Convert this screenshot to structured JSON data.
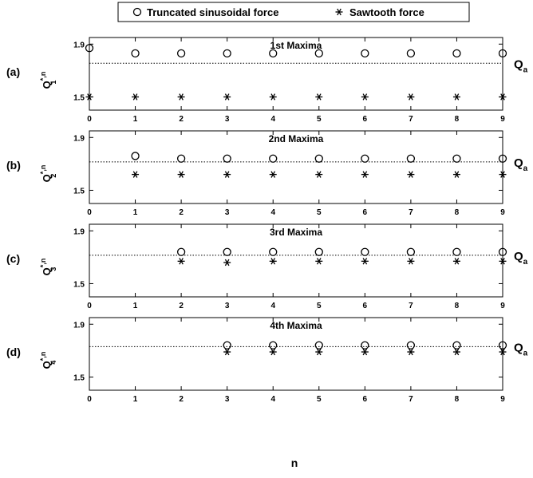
{
  "legend": {
    "entries": [
      {
        "label": "Truncated sinusoidal force",
        "marker": "circle"
      },
      {
        "label": "Sawtooth force",
        "marker": "asterisk"
      }
    ]
  },
  "xlabel": "n",
  "reference_label": {
    "main": "Q",
    "sub": "a"
  },
  "ylabel_parts": {
    "main": "Q",
    "sup": "*,n"
  },
  "chart_data": [
    {
      "type": "scatter",
      "panel": "(a)",
      "title": "1st Maxima",
      "ylabel_sub": "1",
      "xlim": [
        0,
        9
      ],
      "ylim": [
        1.4,
        1.95
      ],
      "yticks": [
        1.5,
        1.9
      ],
      "xticks": [
        0,
        1,
        2,
        3,
        4,
        5,
        6,
        7,
        8,
        9
      ],
      "reference_line": 1.755,
      "series": [
        {
          "name": "Truncated sinusoidal force",
          "marker": "circle",
          "x": [
            0,
            1,
            2,
            3,
            4,
            5,
            6,
            7,
            8,
            9
          ],
          "y": [
            1.87,
            1.83,
            1.83,
            1.83,
            1.83,
            1.83,
            1.83,
            1.83,
            1.83,
            1.83
          ]
        },
        {
          "name": "Sawtooth force",
          "marker": "asterisk",
          "x": [
            0,
            1,
            2,
            3,
            4,
            5,
            6,
            7,
            8,
            9
          ],
          "y": [
            1.5,
            1.5,
            1.5,
            1.5,
            1.5,
            1.5,
            1.5,
            1.5,
            1.5,
            1.5
          ]
        }
      ]
    },
    {
      "type": "scatter",
      "panel": "(b)",
      "title": "2nd Maxima",
      "ylabel_sub": "2",
      "xlim": [
        0,
        9
      ],
      "ylim": [
        1.4,
        1.95
      ],
      "yticks": [
        1.5,
        1.9
      ],
      "xticks": [
        0,
        1,
        2,
        3,
        4,
        5,
        6,
        7,
        8,
        9
      ],
      "reference_line": 1.715,
      "series": [
        {
          "name": "Truncated sinusoidal force",
          "marker": "circle",
          "x": [
            1,
            2,
            3,
            4,
            5,
            6,
            7,
            8,
            9
          ],
          "y": [
            1.76,
            1.74,
            1.74,
            1.74,
            1.74,
            1.74,
            1.74,
            1.74,
            1.74
          ]
        },
        {
          "name": "Sawtooth force",
          "marker": "asterisk",
          "x": [
            1,
            2,
            3,
            4,
            5,
            6,
            7,
            8,
            9
          ],
          "y": [
            1.62,
            1.62,
            1.62,
            1.62,
            1.62,
            1.62,
            1.62,
            1.62,
            1.62
          ]
        }
      ]
    },
    {
      "type": "scatter",
      "panel": "(c)",
      "title": "3rd Maxima",
      "ylabel_sub": "3",
      "xlim": [
        0,
        9
      ],
      "ylim": [
        1.4,
        1.95
      ],
      "yticks": [
        1.5,
        1.9
      ],
      "xticks": [
        0,
        1,
        2,
        3,
        4,
        5,
        6,
        7,
        8,
        9
      ],
      "reference_line": 1.715,
      "series": [
        {
          "name": "Truncated sinusoidal force",
          "marker": "circle",
          "x": [
            2,
            3,
            4,
            5,
            6,
            7,
            8,
            9
          ],
          "y": [
            1.74,
            1.74,
            1.74,
            1.74,
            1.74,
            1.74,
            1.74,
            1.74
          ]
        },
        {
          "name": "Sawtooth force",
          "marker": "asterisk",
          "x": [
            2,
            3,
            4,
            5,
            6,
            7,
            8,
            9
          ],
          "y": [
            1.67,
            1.66,
            1.67,
            1.67,
            1.67,
            1.67,
            1.67,
            1.67
          ]
        }
      ]
    },
    {
      "type": "scatter",
      "panel": "(d)",
      "title": "4th Maxima",
      "ylabel_sub": "4",
      "xlim": [
        0,
        9
      ],
      "ylim": [
        1.4,
        1.95
      ],
      "yticks": [
        1.5,
        1.9
      ],
      "xticks": [
        0,
        1,
        2,
        3,
        4,
        5,
        6,
        7,
        8,
        9
      ],
      "reference_line": 1.73,
      "series": [
        {
          "name": "Truncated sinusoidal force",
          "marker": "circle",
          "x": [
            3,
            4,
            5,
            6,
            7,
            8,
            9
          ],
          "y": [
            1.74,
            1.74,
            1.74,
            1.74,
            1.74,
            1.74,
            1.74
          ]
        },
        {
          "name": "Sawtooth force",
          "marker": "asterisk",
          "x": [
            3,
            4,
            5,
            6,
            7,
            8,
            9
          ],
          "y": [
            1.69,
            1.69,
            1.69,
            1.69,
            1.69,
            1.69,
            1.69
          ]
        }
      ]
    }
  ]
}
